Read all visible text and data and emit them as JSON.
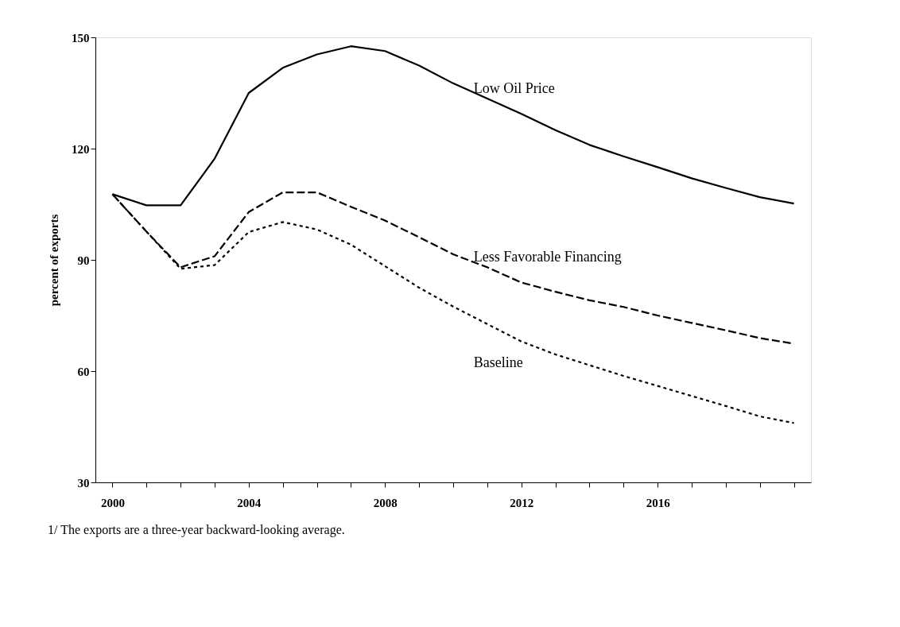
{
  "chart_data": {
    "type": "line",
    "ylabel": "percent of exports",
    "categories": [
      "2000",
      null,
      null,
      null,
      "2004",
      null,
      null,
      null,
      "2008",
      null,
      null,
      null,
      "2012",
      null,
      null,
      null,
      "2016",
      null,
      null,
      null,
      null
    ],
    "series": [
      {
        "name": "Low Oil Price",
        "color": "#000000",
        "line_style": "solid",
        "values": [
          107.7,
          104.7,
          104.7,
          117.3,
          135.0,
          141.8,
          145.4,
          147.6,
          146.3,
          142.4,
          137.6,
          133.5,
          129.4,
          125.0,
          121.0,
          117.9,
          115.0,
          112.0,
          109.4,
          106.9,
          105.2
        ]
      },
      {
        "name": "Less Favorable Financing",
        "color": "#000000",
        "line_style": "dashed",
        "values": [
          107.7,
          97.6,
          88.0,
          91.0,
          102.9,
          108.2,
          108.2,
          104.3,
          100.6,
          96.1,
          91.5,
          88.0,
          83.9,
          81.4,
          79.1,
          77.3,
          75.0,
          73.0,
          71.0,
          68.9,
          67.4
        ]
      },
      {
        "name": "Baseline",
        "color": "#000000",
        "line_style": "dotted",
        "values": [
          107.7,
          97.6,
          87.6,
          88.6,
          97.5,
          100.2,
          98.2,
          94.1,
          88.3,
          82.5,
          77.4,
          72.7,
          68.0,
          64.5,
          61.6,
          58.7,
          56.0,
          53.3,
          50.6,
          47.8,
          46.0
        ]
      }
    ],
    "ylim": [
      30,
      150
    ],
    "yticks": [
      30,
      60,
      90,
      120,
      150
    ],
    "grid": false,
    "annotations": [
      "1/ The exports are a three-year backward-looking average."
    ]
  }
}
